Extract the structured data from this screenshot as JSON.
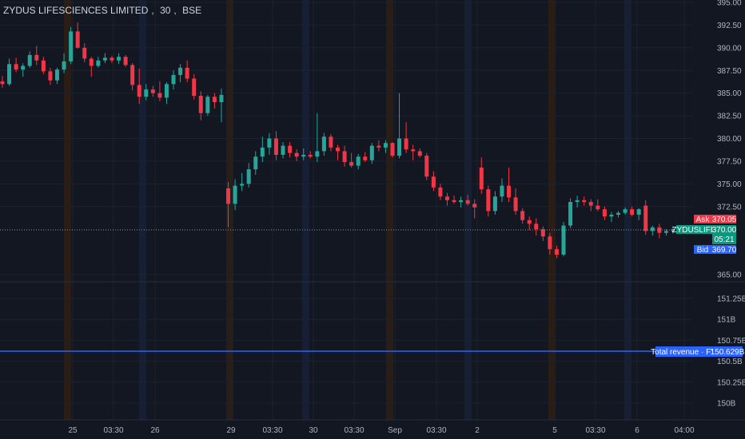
{
  "header": {
    "symbol_name": "ZYDUS LIFESCIENCES LIMITED",
    "interval": "30",
    "exchange": "BSE"
  },
  "colors": {
    "background": "#131722",
    "up": "#26a69a",
    "down": "#f23645",
    "grid": "#1e222d",
    "revenue_line": "#2962ff",
    "session_band": "#2a1d16",
    "premarket_band": "#161f33"
  },
  "price_axis": {
    "labels": [
      "395.00",
      "392.50",
      "390.00",
      "387.50",
      "385.00",
      "382.50",
      "380.00",
      "377.50",
      "375.00",
      "372.50",
      "365.00"
    ],
    "values": [
      395.0,
      392.5,
      390.0,
      387.5,
      385.0,
      382.5,
      380.0,
      377.5,
      375.0,
      372.5,
      365.0
    ]
  },
  "revenue_axis": {
    "labels": [
      "151.25B",
      "151B",
      "150.75B",
      "150.5B",
      "150.25B",
      "150B"
    ],
    "values": [
      151.25,
      151.0,
      150.75,
      150.5,
      150.25,
      150.0
    ]
  },
  "time_axis": {
    "labels": [
      "25",
      "03:30",
      "26",
      "29",
      "03:30",
      "30",
      "03:30",
      "Sep",
      "03:30",
      "2",
      "5",
      "03:30",
      "6",
      "04:00"
    ]
  },
  "price_tags": {
    "ask_label": "Ask",
    "ask_value": "370.05",
    "symbol_label": "ZYDUSLIFE",
    "last_value": "370.00",
    "countdown": "05:21",
    "bid_label": "Bid",
    "bid_value": "369.70"
  },
  "revenue_tag": {
    "label": "Total revenue · FY",
    "value": "150.629B",
    "level": 150.629
  },
  "chart_data": {
    "type": "candlestick",
    "symbol": "ZYDUS LIFESCIENCES LIMITED",
    "interval": "30",
    "exchange": "BSE",
    "price_range": [
      364.0,
      395.5
    ],
    "last_price": 370.0,
    "ask": 370.05,
    "bid": 369.7,
    "candles": [
      [
        386.3,
        386.9,
        385.6,
        386.0
      ],
      [
        386.0,
        388.8,
        385.8,
        388.2
      ],
      [
        388.2,
        388.9,
        387.3,
        387.6
      ],
      [
        387.6,
        388.3,
        386.8,
        388.0
      ],
      [
        388.0,
        389.6,
        387.8,
        389.2
      ],
      [
        389.2,
        390.2,
        388.1,
        388.6
      ],
      [
        388.6,
        389.0,
        387.1,
        387.4
      ],
      [
        387.4,
        387.8,
        385.9,
        386.4
      ],
      [
        386.4,
        387.8,
        386.0,
        387.6
      ],
      [
        387.6,
        389.4,
        387.2,
        388.5
      ],
      [
        388.5,
        392.3,
        388.2,
        391.8
      ],
      [
        391.8,
        392.8,
        389.9,
        390.0
      ],
      [
        390.0,
        390.5,
        388.4,
        388.8
      ],
      [
        388.8,
        389.0,
        386.8,
        388.0
      ],
      [
        388.0,
        389.0,
        387.8,
        388.6
      ],
      [
        388.6,
        389.4,
        388.3,
        388.9
      ],
      [
        388.9,
        389.1,
        388.3,
        388.6
      ],
      [
        388.6,
        389.4,
        388.2,
        389.0
      ],
      [
        389.0,
        389.2,
        387.9,
        388.1
      ],
      [
        388.1,
        388.3,
        385.3,
        385.9
      ],
      [
        385.9,
        387.7,
        383.8,
        384.6
      ],
      [
        384.6,
        386.0,
        384.2,
        385.4
      ],
      [
        385.4,
        385.8,
        384.6,
        385.0
      ],
      [
        385.0,
        386.3,
        384.1,
        384.5
      ],
      [
        384.5,
        386.2,
        383.8,
        386.0
      ],
      [
        386.0,
        387.5,
        385.4,
        387.0
      ],
      [
        387.0,
        388.2,
        386.2,
        387.8
      ],
      [
        387.8,
        388.6,
        386.2,
        386.6
      ],
      [
        386.6,
        387.1,
        384.3,
        384.7
      ],
      [
        384.7,
        385.2,
        382.0,
        382.8
      ],
      [
        382.8,
        384.8,
        382.5,
        384.6
      ],
      [
        384.6,
        385.0,
        383.3,
        384.0
      ],
      [
        384.0,
        385.5,
        381.8,
        384.8
      ],
      [
        374.5,
        375.2,
        370.2,
        372.8
      ],
      [
        372.8,
        375.5,
        372.1,
        374.8
      ],
      [
        374.8,
        376.2,
        374.2,
        375.0
      ],
      [
        375.0,
        377.3,
        374.6,
        376.6
      ],
      [
        376.6,
        378.6,
        376.0,
        378.0
      ],
      [
        378.0,
        380.2,
        377.4,
        379.0
      ],
      [
        379.0,
        380.6,
        378.2,
        380.0
      ],
      [
        380.0,
        380.8,
        377.6,
        378.2
      ],
      [
        378.2,
        379.6,
        377.8,
        379.2
      ],
      [
        379.2,
        379.6,
        377.9,
        378.4
      ],
      [
        378.4,
        378.8,
        377.5,
        378.0
      ],
      [
        378.0,
        378.9,
        377.6,
        378.2
      ],
      [
        378.2,
        378.6,
        377.8,
        378.0
      ],
      [
        378.0,
        382.8,
        377.4,
        378.6
      ],
      [
        378.6,
        380.6,
        378.1,
        380.2
      ],
      [
        380.2,
        380.5,
        378.6,
        379.0
      ],
      [
        379.0,
        379.3,
        377.6,
        378.6
      ],
      [
        378.6,
        379.2,
        376.9,
        377.4
      ],
      [
        377.4,
        378.4,
        376.8,
        377.0
      ],
      [
        377.0,
        378.3,
        376.6,
        378.0
      ],
      [
        378.0,
        378.5,
        377.4,
        377.6
      ],
      [
        377.6,
        379.5,
        377.2,
        379.2
      ],
      [
        379.2,
        379.8,
        378.6,
        379.0
      ],
      [
        379.0,
        379.8,
        378.4,
        379.5
      ],
      [
        379.5,
        379.6,
        377.9,
        378.1
      ],
      [
        378.1,
        385.0,
        377.8,
        380.0
      ],
      [
        380.0,
        381.8,
        378.4,
        378.8
      ],
      [
        378.8,
        379.3,
        377.6,
        378.6
      ],
      [
        378.6,
        378.9,
        377.9,
        378.1
      ],
      [
        378.1,
        378.4,
        375.4,
        375.8
      ],
      [
        375.8,
        376.4,
        374.2,
        374.6
      ],
      [
        374.6,
        375.0,
        373.2,
        373.6
      ],
      [
        373.6,
        374.0,
        372.6,
        373.2
      ],
      [
        373.2,
        373.7,
        372.8,
        373.0
      ],
      [
        373.0,
        373.6,
        372.4,
        373.2
      ],
      [
        373.2,
        373.8,
        372.6,
        372.8
      ],
      [
        372.8,
        373.3,
        371.2,
        372.4
      ],
      [
        376.8,
        377.9,
        373.9,
        374.4
      ],
      [
        374.4,
        374.8,
        371.4,
        372.0
      ],
      [
        372.0,
        374.2,
        371.6,
        373.6
      ],
      [
        373.6,
        375.6,
        373.0,
        374.8
      ],
      [
        374.8,
        376.8,
        373.0,
        373.5
      ],
      [
        373.5,
        374.5,
        371.6,
        372.0
      ],
      [
        372.0,
        372.3,
        370.6,
        371.0
      ],
      [
        371.0,
        371.4,
        369.9,
        370.6
      ],
      [
        370.6,
        371.2,
        369.3,
        370.0
      ],
      [
        370.0,
        370.3,
        368.7,
        369.2
      ],
      [
        369.2,
        369.6,
        367.2,
        367.8
      ],
      [
        367.8,
        368.2,
        366.8,
        367.2
      ],
      [
        367.2,
        370.8,
        367.0,
        370.4
      ],
      [
        370.4,
        373.4,
        370.1,
        373.0
      ],
      [
        373.0,
        373.7,
        372.4,
        373.2
      ],
      [
        373.2,
        373.6,
        372.6,
        373.0
      ],
      [
        373.0,
        373.3,
        372.0,
        372.6
      ],
      [
        372.6,
        373.3,
        372.0,
        372.2
      ],
      [
        372.2,
        372.5,
        371.0,
        371.4
      ],
      [
        371.4,
        371.9,
        370.8,
        371.6
      ],
      [
        371.6,
        372.0,
        371.3,
        371.8
      ],
      [
        371.8,
        372.4,
        371.6,
        372.2
      ],
      [
        372.2,
        372.5,
        371.4,
        371.6
      ],
      [
        371.6,
        372.3,
        371.0,
        372.2
      ],
      [
        372.6,
        373.2,
        369.4,
        369.8
      ],
      [
        369.8,
        370.4,
        369.3,
        370.2
      ],
      [
        370.2,
        370.6,
        369.0,
        369.6
      ],
      [
        369.6,
        370.0,
        369.3,
        369.8
      ],
      [
        369.8,
        370.3,
        369.5,
        370.0
      ]
    ],
    "session_breaks": [
      "25",
      "26",
      "29",
      "30",
      "Sep",
      "2",
      "5",
      "6"
    ],
    "indicator": {
      "name": "Total revenue · FY",
      "value": 150.629,
      "unit": "B",
      "range": [
        149.9,
        151.45
      ]
    }
  }
}
